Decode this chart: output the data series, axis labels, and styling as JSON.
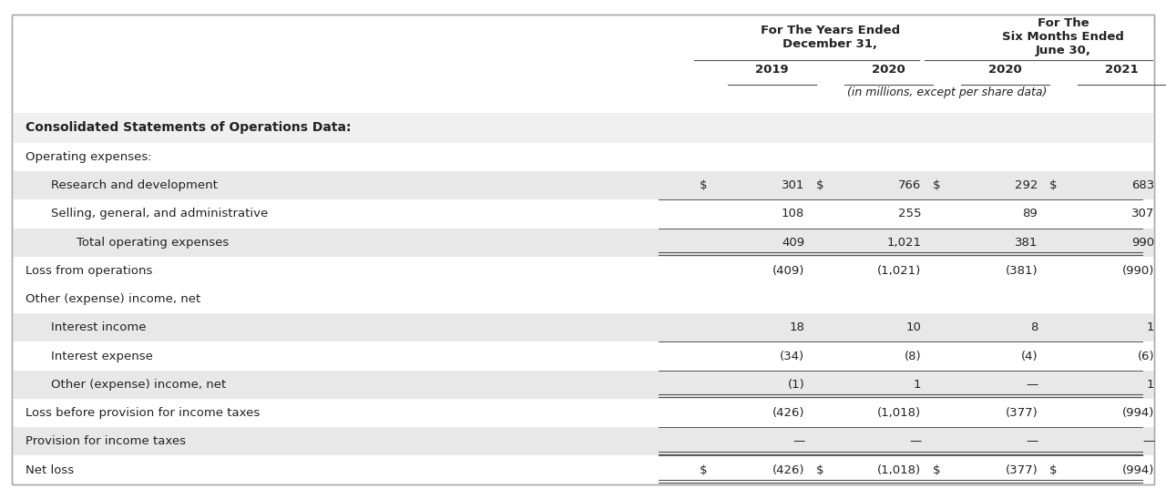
{
  "title_years": "For The Years Ended\nDecember 31,",
  "title_months": "For The\nSix Months Ended\nJune 30,",
  "col_headers": [
    "2019",
    "2020",
    "2020",
    "2021"
  ],
  "sub_header": "(in millions, except per share data)",
  "section_header": "Consolidated Statements of Operations Data:",
  "rows": [
    {
      "label": "Operating expenses:",
      "indent": 1,
      "values": [
        "",
        "",
        "",
        ""
      ],
      "bold": false,
      "bg": "white",
      "dollar_sign": false
    },
    {
      "label": "Research and development",
      "indent": 2,
      "values": [
        "301",
        "766",
        "292",
        "683"
      ],
      "bold": false,
      "bg": "#e8e8e8",
      "dollar_sign": true
    },
    {
      "label": "Selling, general, and administrative",
      "indent": 2,
      "values": [
        "108",
        "255",
        "89",
        "307"
      ],
      "bold": false,
      "bg": "white",
      "dollar_sign": false,
      "top_border": true
    },
    {
      "label": "Total operating expenses",
      "indent": 3,
      "values": [
        "409",
        "1,021",
        "381",
        "990"
      ],
      "bold": false,
      "bg": "#e8e8e8",
      "dollar_sign": false,
      "top_border": true,
      "double_bottom": true
    },
    {
      "label": "Loss from operations",
      "indent": 1,
      "values": [
        "(409)",
        "(1,021)",
        "(381)",
        "(990)"
      ],
      "bold": false,
      "bg": "white",
      "dollar_sign": false
    },
    {
      "label": "Other (expense) income, net",
      "indent": 1,
      "values": [
        "",
        "",
        "",
        ""
      ],
      "bold": false,
      "bg": "white",
      "dollar_sign": false
    },
    {
      "label": "Interest income",
      "indent": 2,
      "values": [
        "18",
        "10",
        "8",
        "1"
      ],
      "bold": false,
      "bg": "#e8e8e8",
      "dollar_sign": false
    },
    {
      "label": "Interest expense",
      "indent": 2,
      "values": [
        "(34)",
        "(8)",
        "(4)",
        "(6)"
      ],
      "bold": false,
      "bg": "white",
      "dollar_sign": false,
      "top_border": true
    },
    {
      "label": "Other (expense) income, net",
      "indent": 2,
      "values": [
        "(1)",
        "1",
        "—",
        "1"
      ],
      "bold": false,
      "bg": "#e8e8e8",
      "dollar_sign": false,
      "top_border": true,
      "double_bottom": true
    },
    {
      "label": "Loss before provision for income taxes",
      "indent": 1,
      "values": [
        "(426)",
        "(1,018)",
        "(377)",
        "(994)"
      ],
      "bold": false,
      "bg": "white",
      "dollar_sign": false
    },
    {
      "label": "Provision for income taxes",
      "indent": 1,
      "values": [
        "—",
        "—",
        "—",
        "—"
      ],
      "bold": false,
      "bg": "#e8e8e8",
      "dollar_sign": false,
      "top_border": true,
      "double_bottom": true
    },
    {
      "label": "Net loss",
      "indent": 1,
      "values": [
        "(426)",
        "(1,018)",
        "(377)",
        "(994)"
      ],
      "bold": false,
      "bg": "white",
      "dollar_sign": true,
      "top_border": true,
      "double_bottom": true
    }
  ],
  "bg_color": "white",
  "text_color": "#222222",
  "border_color": "#555555",
  "font_size": 9.5,
  "header_font_size": 9.5
}
